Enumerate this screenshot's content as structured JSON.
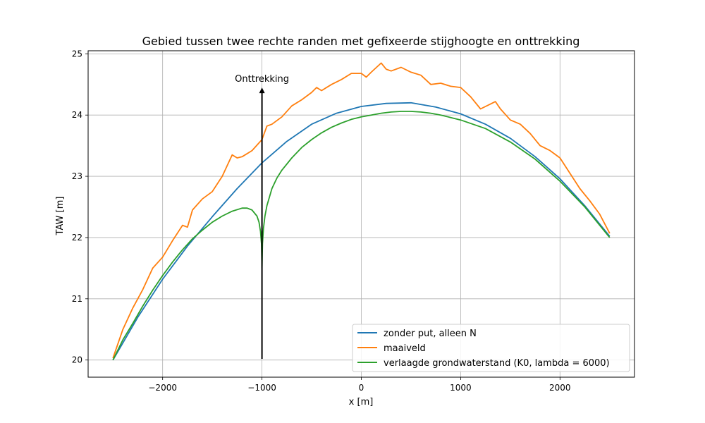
{
  "chart_data": {
    "type": "line",
    "title": "Gebied tussen twee rechte randen met gefixeerde stijghoogte en onttrekking",
    "xlabel": "x [m]",
    "ylabel": "TAW [m]",
    "xlim": [
      -2750,
      2750
    ],
    "ylim": [
      19.72,
      25.05
    ],
    "xticks": [
      -2000,
      -1000,
      0,
      1000,
      2000
    ],
    "xtick_labels": [
      "−2000",
      "−1000",
      "0",
      "1000",
      "2000"
    ],
    "yticks": [
      20,
      21,
      22,
      23,
      24,
      25
    ],
    "ytick_labels": [
      "20",
      "21",
      "22",
      "23",
      "24",
      "25"
    ],
    "grid": true,
    "legend_position": "lower-right",
    "annotation": {
      "text": "Onttrekking",
      "arrow_x": -1000,
      "arrow_from_y": 20.02,
      "arrow_to_y": 24.45
    },
    "series": [
      {
        "name": "zonder put, alleen N",
        "color": "#1f77b4",
        "x": [
          -2500,
          -2250,
          -2000,
          -1750,
          -1500,
          -1250,
          -1000,
          -750,
          -500,
          -250,
          0,
          250,
          500,
          750,
          1000,
          1250,
          1500,
          1750,
          2000,
          2250,
          2500
        ],
        "y": [
          20.0,
          20.7,
          21.32,
          21.86,
          22.34,
          22.8,
          23.22,
          23.57,
          23.85,
          24.03,
          24.14,
          24.19,
          24.2,
          24.13,
          24.02,
          23.85,
          23.62,
          23.32,
          22.96,
          22.52,
          22.02
        ]
      },
      {
        "name": "maaiveld",
        "color": "#ff7f0e",
        "x": [
          -2500,
          -2400,
          -2300,
          -2200,
          -2100,
          -2000,
          -1900,
          -1800,
          -1750,
          -1700,
          -1600,
          -1500,
          -1400,
          -1300,
          -1250,
          -1200,
          -1100,
          -1000,
          -950,
          -900,
          -800,
          -700,
          -600,
          -500,
          -450,
          -400,
          -300,
          -200,
          -100,
          0,
          50,
          100,
          200,
          250,
          300,
          400,
          500,
          600,
          700,
          800,
          900,
          1000,
          1100,
          1200,
          1300,
          1350,
          1400,
          1500,
          1600,
          1700,
          1800,
          1900,
          2000,
          2100,
          2200,
          2300,
          2400,
          2500
        ],
        "y": [
          20.03,
          20.5,
          20.85,
          21.15,
          21.5,
          21.68,
          21.95,
          22.2,
          22.17,
          22.45,
          22.63,
          22.75,
          23.0,
          23.35,
          23.3,
          23.32,
          23.42,
          23.6,
          23.82,
          23.85,
          23.97,
          24.15,
          24.25,
          24.37,
          24.45,
          24.4,
          24.5,
          24.58,
          24.68,
          24.68,
          24.62,
          24.7,
          24.85,
          24.75,
          24.72,
          24.78,
          24.7,
          24.65,
          24.5,
          24.52,
          24.47,
          24.45,
          24.3,
          24.1,
          24.18,
          24.22,
          24.1,
          23.92,
          23.85,
          23.7,
          23.5,
          23.42,
          23.3,
          23.05,
          22.8,
          22.6,
          22.38,
          22.07
        ]
      },
      {
        "name": "verlaagde grondwaterstand (K0, lambda = 6000)",
        "color": "#2ca02c",
        "x": [
          -2500,
          -2400,
          -2300,
          -2200,
          -2100,
          -2000,
          -1900,
          -1800,
          -1700,
          -1600,
          -1500,
          -1400,
          -1300,
          -1200,
          -1150,
          -1100,
          -1050,
          -1030,
          -1015,
          -1005,
          -1000,
          -995,
          -985,
          -970,
          -950,
          -900,
          -850,
          -800,
          -700,
          -600,
          -500,
          -400,
          -300,
          -200,
          -100,
          0,
          100,
          200,
          300,
          400,
          500,
          600,
          700,
          800,
          900,
          1000,
          1250,
          1500,
          1750,
          2000,
          2250,
          2500
        ],
        "y": [
          20.0,
          20.33,
          20.6,
          20.88,
          21.14,
          21.38,
          21.6,
          21.8,
          21.98,
          22.12,
          22.25,
          22.35,
          22.43,
          22.48,
          22.48,
          22.45,
          22.35,
          22.25,
          22.1,
          21.9,
          21.5,
          21.9,
          22.15,
          22.35,
          22.52,
          22.8,
          22.97,
          23.1,
          23.3,
          23.47,
          23.6,
          23.71,
          23.8,
          23.87,
          23.93,
          23.97,
          24.0,
          24.03,
          24.05,
          24.06,
          24.06,
          24.05,
          24.03,
          24.0,
          23.96,
          23.92,
          23.78,
          23.56,
          23.28,
          22.92,
          22.5,
          22.0
        ]
      }
    ]
  }
}
